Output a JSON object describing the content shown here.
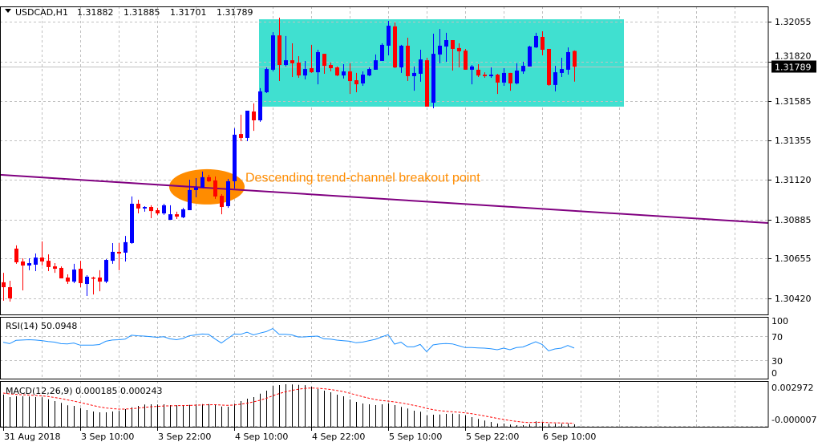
{
  "header": {
    "symbol": "USDCAD,H1",
    "open": "1.31882",
    "high": "1.31885",
    "low": "1.31701",
    "close": "1.31789",
    "menu_icon": "triangle-down-icon"
  },
  "colors": {
    "bull": "#0000FF",
    "bear": "#FF0000",
    "range_box": "#40E0D0",
    "trendline": "#800080",
    "highlight": "#FF8C00",
    "rsi_line": "#1E90FF",
    "macd_signal": "#FF0000",
    "grid": "#C0C0C0"
  },
  "chart_data": [
    {
      "type": "candlestick",
      "title": "USDCAD,H1",
      "y_ticks": [
        "1.32055",
        "1.31820",
        "1.31585",
        "1.31355",
        "1.31120",
        "1.30885",
        "1.30655",
        "1.30420"
      ],
      "x_ticks": [
        {
          "bar": 0,
          "label": "31 Aug 2018"
        },
        {
          "bar": 12,
          "label": "3 Sep 10:00"
        },
        {
          "bar": 24,
          "label": "3 Sep 22:00"
        },
        {
          "bar": 36,
          "label": "4 Sep 10:00"
        },
        {
          "bar": 48,
          "label": "4 Sep 22:00"
        },
        {
          "bar": 60,
          "label": "5 Sep 10:00"
        },
        {
          "bar": 72,
          "label": "5 Sep 22:00"
        },
        {
          "bar": 84,
          "label": "6 Sep 10:00"
        }
      ],
      "current_price": "1.31789",
      "grid": true,
      "ohlc": [
        [
          1.30515,
          1.30571,
          1.30406,
          1.30486
        ],
        [
          1.30486,
          1.30524,
          1.30401,
          1.3042
        ],
        [
          1.30714,
          1.30733,
          1.30624,
          1.30633
        ],
        [
          1.30638,
          1.30657,
          1.30467,
          1.30614
        ],
        [
          1.30614,
          1.30657,
          1.30586,
          1.30628
        ],
        [
          1.30619,
          1.30685,
          1.30581,
          1.30661
        ],
        [
          1.30661,
          1.30756,
          1.30614,
          1.30638
        ],
        [
          1.30642,
          1.3068,
          1.30581,
          1.30605
        ],
        [
          1.30609,
          1.30628,
          1.30571,
          1.30595
        ],
        [
          1.306,
          1.30609,
          1.30538,
          1.30538
        ],
        [
          1.30543,
          1.30562,
          1.30505,
          1.30519
        ],
        [
          1.30519,
          1.30624,
          1.3051,
          1.3059
        ],
        [
          1.30595,
          1.30642,
          1.30486,
          1.3051
        ],
        [
          1.30505,
          1.30557,
          1.30434,
          1.30548
        ],
        [
          1.30543,
          1.30548,
          1.30443,
          1.30538
        ],
        [
          1.30543,
          1.30586,
          1.30462,
          1.30519
        ],
        [
          1.30519,
          1.30652,
          1.3051,
          1.30647
        ],
        [
          1.30642,
          1.30747,
          1.30624,
          1.30695
        ],
        [
          1.30695,
          1.30747,
          1.30586,
          1.30685
        ],
        [
          1.3069,
          1.30789,
          1.30638,
          1.30752
        ],
        [
          1.30747,
          1.31022,
          1.30742,
          1.30979
        ],
        [
          1.30979,
          1.31003,
          1.30922,
          1.30951
        ],
        [
          1.30951,
          1.30965,
          1.30932,
          1.3096
        ],
        [
          1.3096,
          1.3097,
          1.30894,
          1.30936
        ],
        [
          1.30941,
          1.30955,
          1.30913,
          1.30922
        ],
        [
          1.30922,
          1.30979,
          1.30913,
          1.3097
        ],
        [
          1.30884,
          1.3097,
          1.30884,
          1.30917
        ],
        [
          1.30917,
          1.30932,
          1.30889,
          1.30903
        ],
        [
          1.30899,
          1.30955,
          1.30894,
          1.30946
        ],
        [
          1.30941,
          1.31121,
          1.30941,
          1.3106
        ],
        [
          1.3106,
          1.31131,
          1.31017,
          1.31074
        ],
        [
          1.31074,
          1.31169,
          1.31074,
          1.31136
        ],
        [
          1.31136,
          1.3115,
          1.31107,
          1.31112
        ],
        [
          1.31117,
          1.3114,
          1.31008,
          1.31022
        ],
        [
          1.31026,
          1.31036,
          1.30917,
          1.3096
        ],
        [
          1.30965,
          1.31126,
          1.30955,
          1.31112
        ],
        [
          1.31112,
          1.31425,
          1.31069,
          1.31387
        ],
        [
          1.31391,
          1.31505,
          1.31349,
          1.31368
        ],
        [
          1.31368,
          1.31529,
          1.31349,
          1.31529
        ],
        [
          1.31524,
          1.31572,
          1.3141,
          1.31472
        ],
        [
          1.31472,
          1.31662,
          1.31463,
          1.31643
        ],
        [
          1.31638,
          1.31785,
          1.31633,
          1.31775
        ],
        [
          1.31771,
          1.31993,
          1.31761,
          1.31974
        ],
        [
          1.31974,
          1.32079,
          1.31704,
          1.31799
        ],
        [
          1.31799,
          1.3197,
          1.3179,
          1.31827
        ],
        [
          1.31827,
          1.31927,
          1.31728,
          1.31809
        ],
        [
          1.31813,
          1.31851,
          1.31723,
          1.31737
        ],
        [
          1.31737,
          1.31823,
          1.31714,
          1.31775
        ],
        [
          1.3178,
          1.31918,
          1.31752,
          1.31756
        ],
        [
          1.31756,
          1.31889,
          1.31685,
          1.31875
        ],
        [
          1.31865,
          1.31865,
          1.31747,
          1.31794
        ],
        [
          1.31799,
          1.31813,
          1.31761,
          1.3178
        ],
        [
          1.31785,
          1.3179,
          1.31733,
          1.31737
        ],
        [
          1.31737,
          1.31804,
          1.31719,
          1.31761
        ],
        [
          1.31761,
          1.31809,
          1.31628,
          1.31704
        ],
        [
          1.31709,
          1.31752,
          1.31638,
          1.31685
        ],
        [
          1.3169,
          1.31761,
          1.31676,
          1.31742
        ],
        [
          1.31737,
          1.31785,
          1.31733,
          1.31775
        ],
        [
          1.31771,
          1.31861,
          1.31771,
          1.31827
        ],
        [
          1.31823,
          1.31927,
          1.31823,
          1.31918
        ],
        [
          1.31913,
          1.3206,
          1.31856,
          1.32031
        ],
        [
          1.32027,
          1.3205,
          1.3178,
          1.31785
        ],
        [
          1.31785,
          1.31918,
          1.31752,
          1.31913
        ],
        [
          1.31913,
          1.3196,
          1.31704,
          1.31733
        ],
        [
          1.31733,
          1.3179,
          1.31647,
          1.31752
        ],
        [
          1.31747,
          1.31889,
          1.317,
          1.31832
        ],
        [
          1.31827,
          1.31842,
          1.31553,
          1.31553
        ],
        [
          1.31576,
          1.31984,
          1.31543,
          1.31865
        ],
        [
          1.31861,
          1.32012,
          1.31809,
          1.31913
        ],
        [
          1.31908,
          1.31989,
          1.31818,
          1.31946
        ],
        [
          1.31946,
          1.31946,
          1.31766,
          1.31894
        ],
        [
          1.31899,
          1.31927,
          1.31785,
          1.3188
        ],
        [
          1.31884,
          1.31894,
          1.31771,
          1.31771
        ],
        [
          1.31771,
          1.31799,
          1.31685,
          1.3179
        ],
        [
          1.31771,
          1.31804,
          1.31728,
          1.31737
        ],
        [
          1.31742,
          1.31756,
          1.31723,
          1.31733
        ],
        [
          1.31733,
          1.31785,
          1.31723,
          1.31742
        ],
        [
          1.31742,
          1.31747,
          1.31628,
          1.31695
        ],
        [
          1.31695,
          1.3178,
          1.31676,
          1.31752
        ],
        [
          1.31752,
          1.31752,
          1.31647,
          1.3169
        ],
        [
          1.3169,
          1.31809,
          1.31685,
          1.31766
        ],
        [
          1.31761,
          1.31818,
          1.31747,
          1.31794
        ],
        [
          1.3179,
          1.31913,
          1.3179,
          1.31908
        ],
        [
          1.31903,
          1.31989,
          1.31899,
          1.3197
        ],
        [
          1.31965,
          1.31998,
          1.31856,
          1.31889
        ],
        [
          1.31894,
          1.31894,
          1.31676,
          1.31681
        ],
        [
          1.31681,
          1.31794,
          1.31643,
          1.31756
        ],
        [
          1.31752,
          1.31842,
          1.31728,
          1.31775
        ],
        [
          1.31771,
          1.31903,
          1.31742,
          1.31875
        ],
        [
          1.31882,
          1.31885,
          1.31701,
          1.31789
        ]
      ],
      "range_box": {
        "start_bar": 40,
        "end_bar": 97,
        "price_top": 1.32069,
        "price_bottom": 1.31553
      },
      "trendline": {
        "from": {
          "bar": -0.5,
          "price": 1.3115
        },
        "to": {
          "bar": 119.25,
          "price": 1.30865
        }
      },
      "highlight": {
        "bar": 31.75,
        "price": 1.31079
      },
      "annotation": {
        "text": "Descending trend-channel breakout point",
        "bar": 37.75,
        "price": 1.3111
      }
    },
    {
      "type": "line",
      "title": "RSI(14) 50.0948",
      "ylim": [
        0,
        100
      ],
      "y_ticks": [
        "100",
        "70",
        "30",
        "0"
      ],
      "levels": [
        70,
        30
      ],
      "values": [
        59.8,
        57.5,
        63,
        63.5,
        64,
        63.5,
        62.5,
        61,
        60,
        57.5,
        57,
        58.5,
        55,
        55,
        55,
        56,
        61.5,
        63.5,
        64,
        65,
        71.5,
        70.5,
        70,
        69,
        68,
        69,
        65.5,
        64,
        66,
        70.5,
        72,
        73.5,
        73,
        65.5,
        58.5,
        66,
        73.5,
        73,
        76.5,
        72,
        75,
        77.5,
        82.5,
        73,
        73,
        72,
        68.5,
        68.7,
        69.5,
        70,
        65.5,
        65,
        63.3,
        62.4,
        61.5,
        59,
        60,
        62.4,
        64.7,
        68.7,
        72.4,
        56.7,
        59.8,
        52.2,
        52.2,
        56.2,
        44.2,
        55.3,
        57.1,
        57.6,
        57.1,
        54,
        50.9,
        50.9,
        50.4,
        50,
        49,
        47.3,
        50,
        47.3,
        50.9,
        51.8,
        56.2,
        60.7,
        56.2,
        45.6,
        48.7,
        50,
        54.4,
        50.09
      ]
    },
    {
      "type": "bar",
      "title": "MACD(12,26,9) 0.000185 0.000243",
      "y_ticks": [
        "0.002972",
        "-0.000007"
      ],
      "ylim": [
        -7e-06,
        0.002972
      ],
      "signal_last": 0.000243,
      "values": [
        0.002191,
        0.002014,
        0.002067,
        0.002067,
        0.002051,
        0.002014,
        0.001998,
        0.001869,
        0.001745,
        0.001622,
        0.001461,
        0.001423,
        0.001278,
        0.001155,
        0.001047,
        0.000993,
        0.000993,
        0.001047,
        0.001085,
        0.001208,
        0.001332,
        0.001423,
        0.001514,
        0.00153,
        0.001514,
        0.00153,
        0.001477,
        0.001461,
        0.001477,
        0.001493,
        0.001547,
        0.001547,
        0.001547,
        0.00153,
        0.001385,
        0.001369,
        0.001568,
        0.001745,
        0.001906,
        0.002014,
        0.002245,
        0.002443,
        0.002782,
        0.002819,
        0.002873,
        0.002857,
        0.002835,
        0.00281,
        0.002712,
        0.002551,
        0.002443,
        0.002336,
        0.002175,
        0.002067,
        0.001853,
        0.001692,
        0.001584,
        0.00153,
        0.001477,
        0.00153,
        0.0016,
        0.001477,
        0.001353,
        0.001246,
        0.001101,
        0.001031,
        0.000795,
        0.000832,
        0.000848,
        0.000886,
        0.000902,
        0.00087,
        0.000795,
        0.000671,
        0.000548,
        0.00044,
        0.000349,
        0.000242,
        0.000242,
        0.000172,
        0.000134,
        0.000134,
        0.000204,
        0.000387,
        0.000349,
        0.000226,
        0.000226,
        0.000226,
        0.000242,
        0.000185
      ]
    }
  ]
}
